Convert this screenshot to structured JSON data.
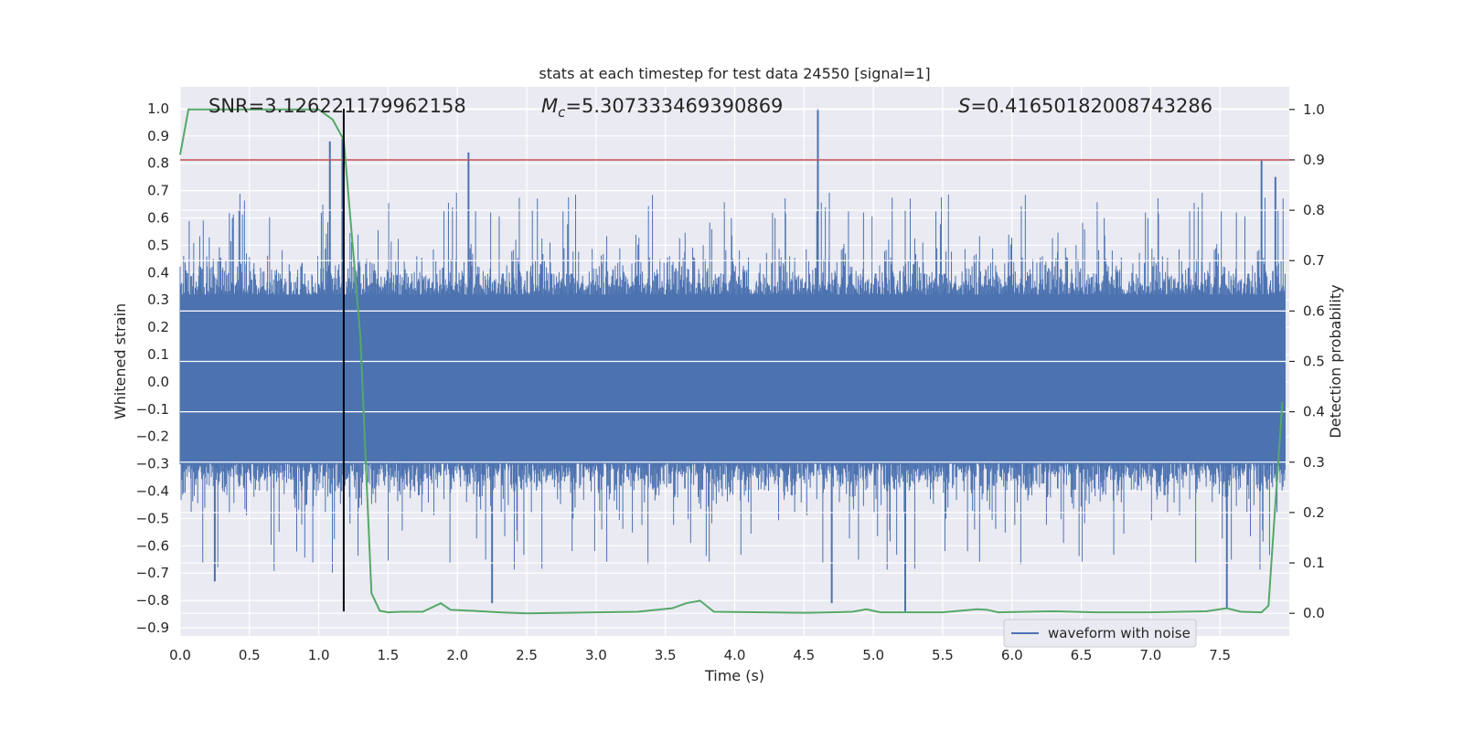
{
  "chart_data": {
    "type": "line",
    "title": "stats at each timestep for test data 24550 [signal=1]",
    "xlabel": "Time (s)",
    "ylabel_left": "Whitened strain",
    "ylabel_right": "Detection probability",
    "xlim": [
      0.0,
      8.0
    ],
    "ylim_left": [
      -0.93,
      1.08
    ],
    "ylim_right": [
      -0.045,
      1.045
    ],
    "xticks": [
      "0.0",
      "0.5",
      "1.0",
      "1.5",
      "2.0",
      "2.5",
      "3.0",
      "3.5",
      "4.0",
      "4.5",
      "5.0",
      "5.5",
      "6.0",
      "6.5",
      "7.0",
      "7.5"
    ],
    "yticks_left": [
      "1.0",
      "0.9",
      "0.8",
      "0.7",
      "0.6",
      "0.5",
      "0.4",
      "0.3",
      "0.2",
      "0.1",
      "0.0",
      "-0.1",
      "-0.2",
      "-0.3",
      "-0.4",
      "-0.5",
      "-0.6",
      "-0.7",
      "-0.8",
      "-0.9"
    ],
    "yticks_right": [
      "1.0",
      "0.9",
      "0.8",
      "0.7",
      "0.6",
      "0.5",
      "0.4",
      "0.3",
      "0.2",
      "0.1",
      "0.0"
    ],
    "grid": true,
    "legend": {
      "position": "bottom-right",
      "entries": [
        "waveform with noise"
      ]
    },
    "annotations": {
      "snr": "SNR=3.126221179962158",
      "mc_symbol": "M",
      "mc_subscript": "c",
      "mc_value": "=5.307333469390869",
      "s_symbol": "S",
      "s_value": "=0.41650182008743286"
    },
    "threshold_line": {
      "axis": "right",
      "value": 0.9
    },
    "marker_line": {
      "x": 1.18,
      "y_bottom": -0.84,
      "y_top": 1.0
    },
    "waveform": {
      "name": "waveform with noise",
      "duration_s": 7.97,
      "core_band": [
        -0.3,
        0.32
      ],
      "notable_peaks": [
        {
          "t": 1.08,
          "v": 0.88
        },
        {
          "t": 1.17,
          "v": 0.89
        },
        {
          "t": 2.08,
          "v": 0.84
        },
        {
          "t": 4.6,
          "v": 1.0
        },
        {
          "t": 7.8,
          "v": 0.81
        },
        {
          "t": 7.9,
          "v": 0.75
        },
        {
          "t": 5.23,
          "v": -0.84
        },
        {
          "t": 7.55,
          "v": -0.83
        },
        {
          "t": 2.25,
          "v": -0.81
        },
        {
          "t": 4.7,
          "v": -0.81
        },
        {
          "t": 0.25,
          "v": -0.73
        }
      ]
    },
    "detection_probability": {
      "name": "detection probability",
      "x": [
        0.0,
        0.06,
        0.5,
        1.0,
        1.1,
        1.18,
        1.3,
        1.38,
        1.44,
        1.5,
        1.6,
        1.75,
        1.88,
        1.95,
        2.1,
        2.3,
        2.5,
        3.0,
        3.3,
        3.55,
        3.65,
        3.75,
        3.85,
        4.2,
        4.5,
        4.7,
        4.85,
        4.95,
        5.05,
        5.5,
        5.75,
        5.82,
        5.9,
        6.3,
        6.6,
        7.0,
        7.4,
        7.55,
        7.65,
        7.8,
        7.85,
        7.95
      ],
      "values": [
        0.91,
        1.0,
        1.0,
        1.0,
        0.98,
        0.94,
        0.55,
        0.04,
        0.005,
        0.002,
        0.003,
        0.003,
        0.02,
        0.007,
        0.005,
        0.002,
        0.0,
        0.002,
        0.003,
        0.01,
        0.02,
        0.025,
        0.003,
        0.002,
        0.001,
        0.002,
        0.003,
        0.008,
        0.002,
        0.002,
        0.008,
        0.007,
        0.002,
        0.004,
        0.002,
        0.002,
        0.004,
        0.01,
        0.003,
        0.002,
        0.015,
        0.42
      ]
    },
    "colors": {
      "background": "#eaeaf2",
      "grid": "#ffffff",
      "waveform": "#4c72b0",
      "probability": "#55a868",
      "threshold": "#c44e52",
      "marker": "#000000",
      "text": "#262626"
    }
  }
}
